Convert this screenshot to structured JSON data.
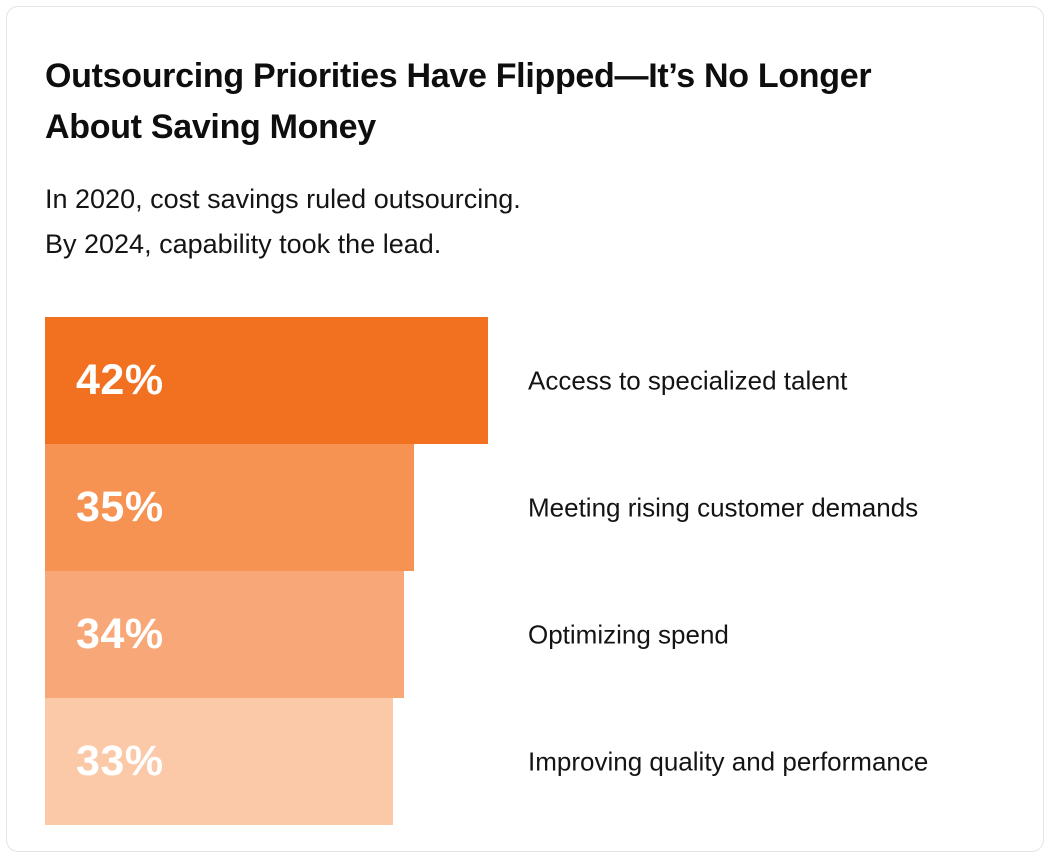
{
  "header": {
    "title": "Outsourcing Priorities Have Flipped—It’s No Longer About Saving Money",
    "title_lines": [
      "Outsourcing Priorities Have Flipped—It’s No Longer",
      "About Saving Money"
    ],
    "subtitle_lines": [
      "In 2020, cost savings ruled outsourcing.",
      "By 2024, capability took the lead."
    ]
  },
  "chart_data": {
    "type": "bar",
    "orientation": "horizontal",
    "title": "Outsourcing Priorities Have Flipped—It’s No Longer About Saving Money",
    "subtitle": "In 2020, cost savings ruled outsourcing. By 2024, capability took the lead.",
    "categories": [
      "Access to specialized talent",
      "Meeting rising customer demands",
      "Optimizing spend",
      "Improving quality and performance"
    ],
    "values": [
      42,
      35,
      34,
      33
    ],
    "value_labels": [
      "42%",
      "35%",
      "34%",
      "33%"
    ],
    "bar_colors": [
      "#F27121",
      "#F69252",
      "#F8A878",
      "#FBC8A8"
    ],
    "value_label_color": "#FFFFFF",
    "xlim": [
      0,
      42
    ],
    "grid": false,
    "legend": false,
    "axes_shown": false
  },
  "colors": {
    "accent": "#F27121",
    "text": "#141414",
    "card_border": "#E4E4E4",
    "background": "#FFFFFF"
  }
}
